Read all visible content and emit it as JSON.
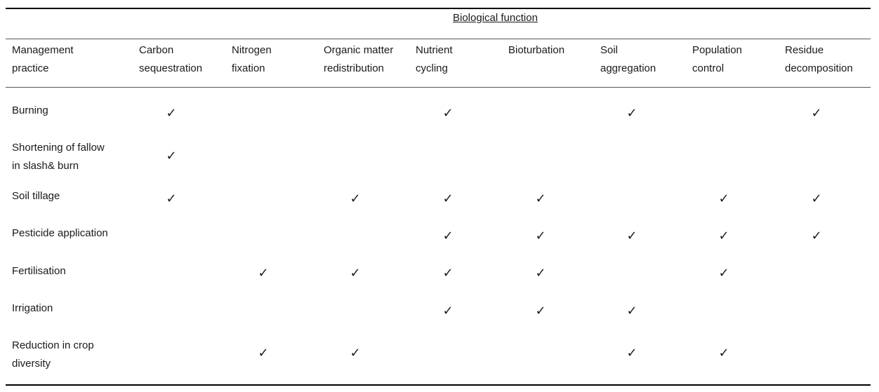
{
  "table": {
    "group_header": "Biological function",
    "row_header": "Management practice",
    "columns": [
      "Carbon sequestration",
      "Nitrogen fixation",
      "Organic matter redistribution",
      "Nutrient cycling",
      "Bioturbation",
      "Soil aggregation",
      "Population control",
      "Residue decomposition"
    ],
    "check_symbol": "✓",
    "rows": [
      {
        "practice": "Burning",
        "checks": [
          true,
          false,
          false,
          true,
          false,
          true,
          false,
          true
        ]
      },
      {
        "practice": "Shortening of fallow in slash& burn",
        "checks": [
          true,
          false,
          false,
          false,
          false,
          false,
          false,
          false
        ]
      },
      {
        "practice": "Soil tillage",
        "checks": [
          true,
          false,
          true,
          true,
          true,
          false,
          true,
          true
        ]
      },
      {
        "practice": "Pesticide application",
        "checks": [
          false,
          false,
          false,
          true,
          true,
          true,
          true,
          true
        ]
      },
      {
        "practice": "Fertilisation",
        "checks": [
          false,
          true,
          true,
          true,
          true,
          false,
          true,
          false
        ]
      },
      {
        "practice": "Irrigation",
        "checks": [
          false,
          false,
          false,
          true,
          true,
          true,
          false,
          false
        ]
      },
      {
        "practice": "Reduction in crop diversity",
        "checks": [
          false,
          true,
          true,
          false,
          false,
          true,
          true,
          false
        ]
      }
    ]
  }
}
